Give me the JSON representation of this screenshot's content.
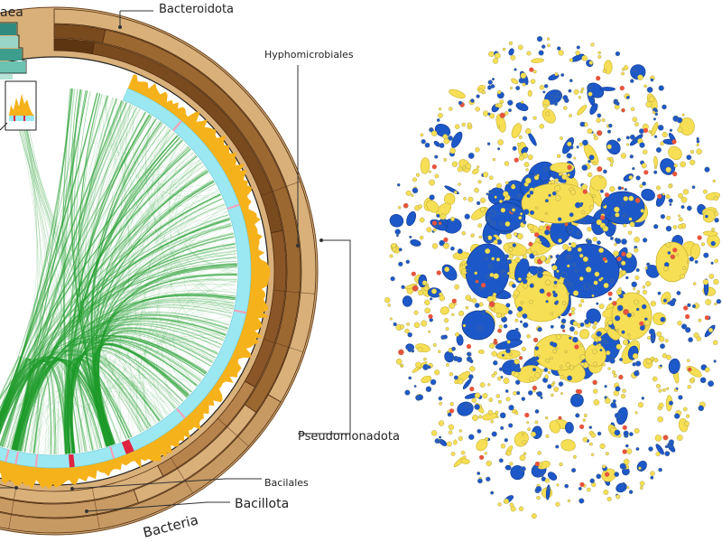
{
  "labels": {
    "archaea_partial": "aea",
    "bacteroidota": "Bacteroidota",
    "hyphomicrobiales": "Hyphomicrobiales",
    "pseudomonadota": "Pseudomonadota",
    "bacilales": "Bacilales",
    "bacillota": "Bacillota",
    "bacteria": "Bacteria"
  },
  "colors": {
    "ring_light": "#D9B07A",
    "ring_mid": "#B8844D",
    "ring_dark": "#7A4A1F",
    "ring_darkest": "#5E3511",
    "histogram": "#F6B21B",
    "inner_ring": "#9BE8F2",
    "chord": "#1E9B2A",
    "highlight": "#E0243F",
    "node_yellow": "#F7DF55",
    "node_blue": "#1D58C9",
    "node_red": "#E8543D",
    "teal_dark": "#2F8B7E",
    "teal_mid": "#6CC2B1",
    "teal_light": "#B6E3D6"
  }
}
